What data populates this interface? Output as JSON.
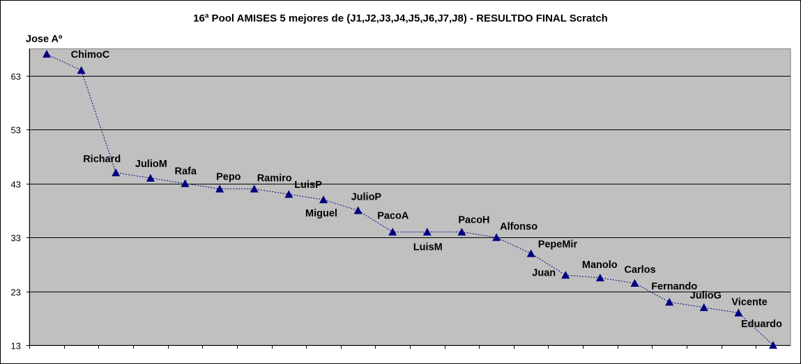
{
  "chart_data": {
    "type": "line",
    "title": "16ª Pool AMISES 5 mejores de (J1,J2,J3,J4,J5,J6,J7,J8) - RESULTDO FINAL Scratch",
    "xlabel": "",
    "ylabel": "",
    "ylim": [
      13,
      68
    ],
    "yticks": [
      13,
      23,
      33,
      43,
      53,
      63
    ],
    "grid": true,
    "legend": "none",
    "marker": "triangle",
    "colors": {
      "series": "#000080",
      "plot_background": "#c0c0c0",
      "grid": "#000000"
    },
    "series": [
      {
        "points": [
          {
            "label": "Jose Aº",
            "y": 67.0
          },
          {
            "label": "ChimoC",
            "y": 64.0
          },
          {
            "label": "Richard",
            "y": 45.0
          },
          {
            "label": "JulioM",
            "y": 44.0
          },
          {
            "label": "Rafa",
            "y": 43.0
          },
          {
            "label": "Pepo",
            "y": 42.0
          },
          {
            "label": "Ramiro",
            "y": 42.0
          },
          {
            "label": "LuisP",
            "y": 41.0
          },
          {
            "label": "Miguel",
            "y": 40.0
          },
          {
            "label": "JulioP",
            "y": 38.0
          },
          {
            "label": "PacoA",
            "y": 34.0
          },
          {
            "label": "LuisM",
            "y": 34.0
          },
          {
            "label": "PacoH",
            "y": 34.0
          },
          {
            "label": "Alfonso",
            "y": 33.0
          },
          {
            "label": "PepeMir",
            "y": 30.0
          },
          {
            "label": "Juan",
            "y": 26.0
          },
          {
            "label": "Manolo",
            "y": 25.5
          },
          {
            "label": "Carlos",
            "y": 24.5
          },
          {
            "label": "Fernando",
            "y": 21.0
          },
          {
            "label": "JulioG",
            "y": 20.0
          },
          {
            "label": "Vicente",
            "y": 19.0
          },
          {
            "label": "Eduardo",
            "y": 13.0
          }
        ]
      }
    ]
  }
}
